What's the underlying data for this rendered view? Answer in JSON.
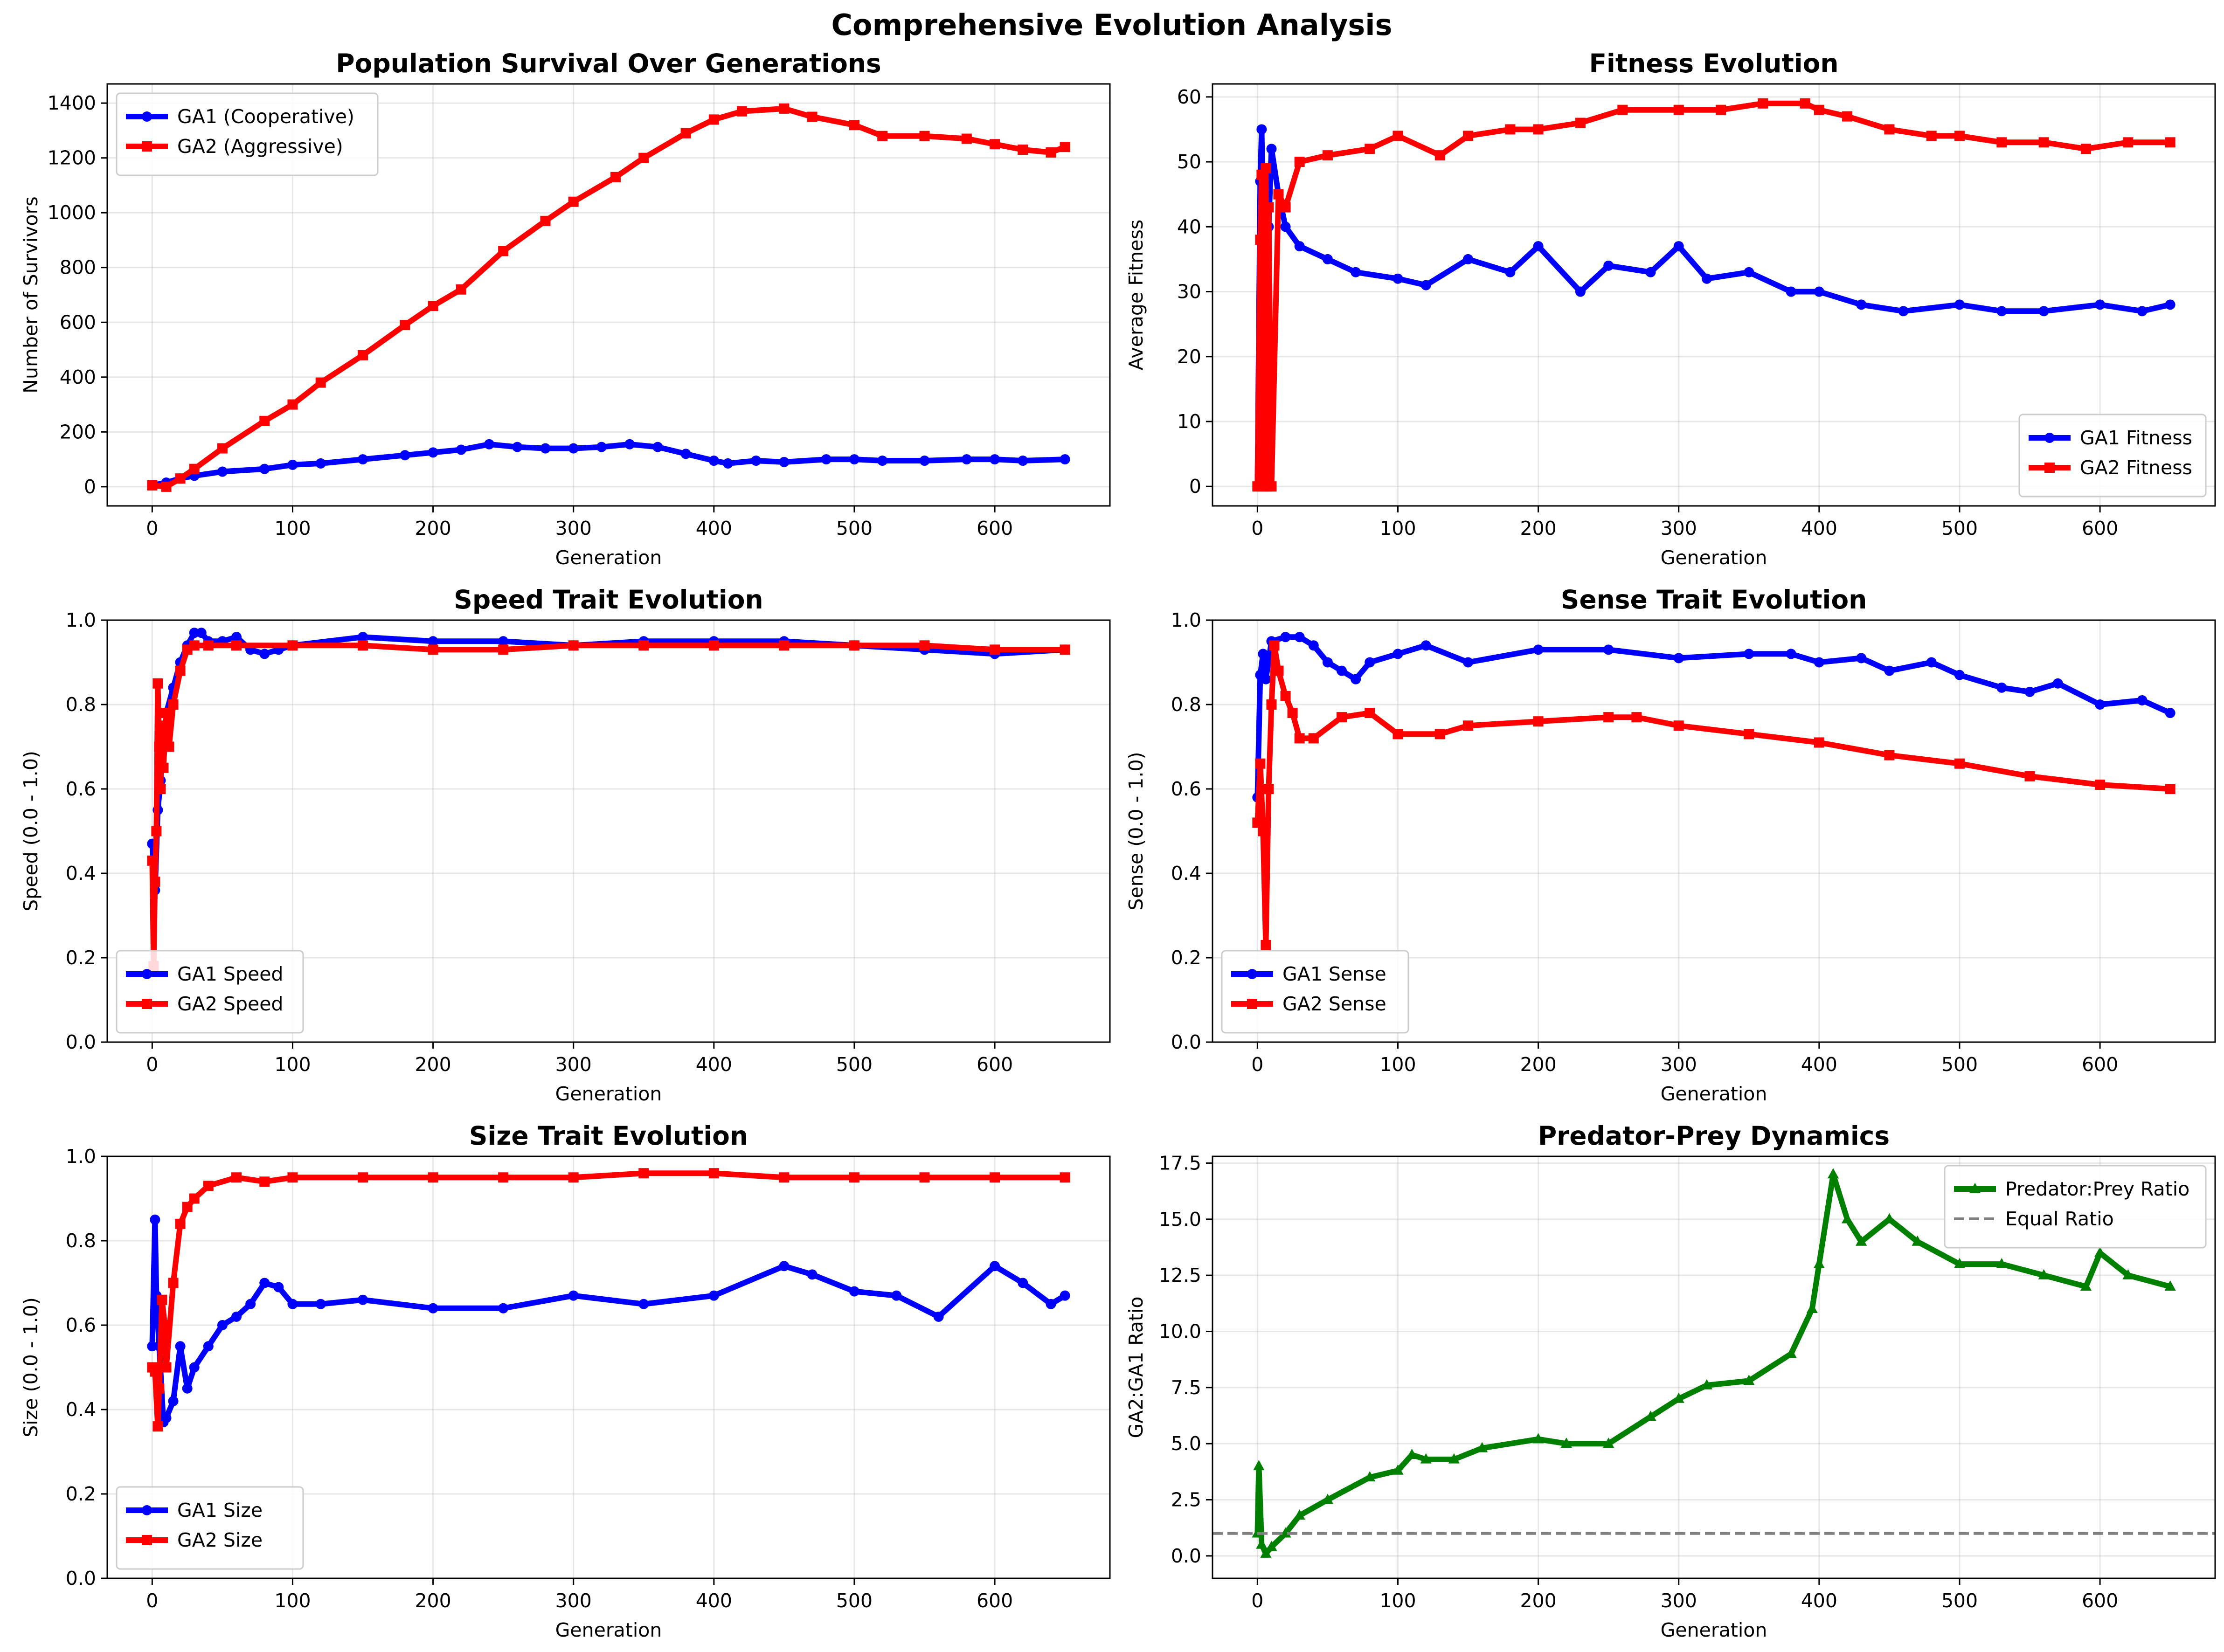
{
  "figure": {
    "suptitle": "Comprehensive Evolution Analysis"
  },
  "chart_data": [
    {
      "type": "line",
      "title": "Population Survival Over Generations",
      "xlabel": "Generation",
      "ylabel": "Number of Survivors",
      "xlim": [
        -32,
        682
      ],
      "ylim": [
        -70,
        1470
      ],
      "xticks": [
        0,
        100,
        200,
        300,
        400,
        500,
        600
      ],
      "yticks": [
        0,
        200,
        400,
        600,
        800,
        1000,
        1200,
        1400
      ],
      "grid": true,
      "legend": "upper left",
      "series": [
        {
          "name": "GA1 (Cooperative)",
          "color": "#0000ff",
          "marker": "circle",
          "x": [
            0,
            10,
            20,
            30,
            50,
            80,
            100,
            120,
            150,
            180,
            200,
            220,
            240,
            260,
            280,
            300,
            320,
            340,
            360,
            380,
            400,
            410,
            430,
            450,
            480,
            500,
            520,
            550,
            580,
            600,
            620,
            650
          ],
          "y": [
            5,
            15,
            30,
            40,
            55,
            65,
            80,
            85,
            100,
            115,
            125,
            135,
            155,
            145,
            140,
            140,
            145,
            155,
            145,
            120,
            95,
            85,
            95,
            90,
            100,
            100,
            95,
            95,
            100,
            100,
            95,
            100
          ]
        },
        {
          "name": "GA2 (Aggressive)",
          "color": "#ff0000",
          "marker": "square",
          "x": [
            0,
            10,
            20,
            30,
            50,
            80,
            100,
            120,
            150,
            180,
            200,
            220,
            250,
            280,
            300,
            330,
            350,
            380,
            400,
            420,
            450,
            470,
            500,
            520,
            550,
            580,
            600,
            620,
            640,
            650
          ],
          "y": [
            5,
            0,
            30,
            65,
            140,
            240,
            300,
            380,
            480,
            590,
            660,
            720,
            860,
            970,
            1040,
            1130,
            1200,
            1290,
            1340,
            1370,
            1380,
            1350,
            1320,
            1280,
            1280,
            1270,
            1250,
            1230,
            1220,
            1240
          ]
        }
      ]
    },
    {
      "type": "line",
      "title": "Fitness Evolution",
      "xlabel": "Generation",
      "ylabel": "Average Fitness",
      "xlim": [
        -32,
        682
      ],
      "ylim": [
        -3,
        62
      ],
      "xticks": [
        0,
        100,
        200,
        300,
        400,
        500,
        600
      ],
      "yticks": [
        0,
        10,
        20,
        30,
        40,
        50,
        60
      ],
      "grid": true,
      "legend": "lower right",
      "series": [
        {
          "name": "GA1 Fitness",
          "color": "#0000ff",
          "marker": "circle",
          "x": [
            0,
            2,
            3,
            4,
            6,
            8,
            10,
            15,
            20,
            30,
            50,
            70,
            100,
            120,
            150,
            180,
            200,
            230,
            250,
            280,
            300,
            320,
            350,
            380,
            400,
            430,
            460,
            500,
            530,
            560,
            600,
            630,
            650
          ],
          "y": [
            0,
            47,
            55,
            42,
            30,
            40,
            52,
            45,
            40,
            37,
            35,
            33,
            32,
            31,
            35,
            33,
            37,
            30,
            34,
            33,
            37,
            32,
            33,
            30,
            30,
            28,
            27,
            28,
            27,
            27,
            28,
            27,
            28
          ]
        },
        {
          "name": "GA2 Fitness",
          "color": "#ff0000",
          "marker": "square",
          "x": [
            0,
            2,
            3,
            4,
            5,
            6,
            7,
            8,
            10,
            15,
            20,
            30,
            50,
            80,
            100,
            130,
            150,
            180,
            200,
            230,
            260,
            300,
            330,
            360,
            390,
            400,
            420,
            450,
            480,
            500,
            530,
            560,
            590,
            620,
            650
          ],
          "y": [
            0,
            38,
            48,
            0,
            30,
            49,
            0,
            43,
            0,
            45,
            43,
            50,
            51,
            52,
            54,
            51,
            54,
            55,
            55,
            56,
            58,
            58,
            58,
            59,
            59,
            58,
            57,
            55,
            54,
            54,
            53,
            53,
            52,
            53,
            53
          ]
        }
      ]
    },
    {
      "type": "line",
      "title": "Speed Trait Evolution",
      "xlabel": "Generation",
      "ylabel": "Speed (0.0 - 1.0)",
      "xlim": [
        -32,
        682
      ],
      "ylim": [
        0.0,
        1.0
      ],
      "xticks": [
        0,
        100,
        200,
        300,
        400,
        500,
        600
      ],
      "yticks": [
        0.0,
        0.2,
        0.4,
        0.6,
        0.8,
        1.0
      ],
      "grid": true,
      "legend": "lower left",
      "series": [
        {
          "name": "GA1 Speed",
          "color": "#0000ff",
          "marker": "circle",
          "x": [
            0,
            2,
            4,
            6,
            8,
            10,
            15,
            20,
            25,
            30,
            35,
            40,
            50,
            60,
            70,
            80,
            90,
            100,
            150,
            200,
            250,
            300,
            350,
            400,
            450,
            500,
            550,
            600,
            650
          ],
          "y": [
            0.47,
            0.36,
            0.55,
            0.62,
            0.7,
            0.78,
            0.84,
            0.9,
            0.94,
            0.97,
            0.97,
            0.95,
            0.95,
            0.96,
            0.93,
            0.92,
            0.93,
            0.94,
            0.96,
            0.95,
            0.95,
            0.94,
            0.95,
            0.95,
            0.95,
            0.94,
            0.93,
            0.92,
            0.93
          ]
        },
        {
          "name": "GA2 Speed",
          "color": "#ff0000",
          "marker": "square",
          "x": [
            0,
            1,
            2,
            3,
            4,
            5,
            6,
            7,
            8,
            10,
            12,
            15,
            20,
            25,
            30,
            40,
            60,
            100,
            150,
            200,
            250,
            300,
            350,
            400,
            450,
            500,
            550,
            600,
            650
          ],
          "y": [
            0.43,
            0.18,
            0.38,
            0.5,
            0.85,
            0.7,
            0.6,
            0.75,
            0.65,
            0.78,
            0.7,
            0.8,
            0.88,
            0.93,
            0.94,
            0.94,
            0.94,
            0.94,
            0.94,
            0.93,
            0.93,
            0.94,
            0.94,
            0.94,
            0.94,
            0.94,
            0.94,
            0.93,
            0.93
          ]
        }
      ]
    },
    {
      "type": "line",
      "title": "Sense Trait Evolution",
      "xlabel": "Generation",
      "ylabel": "Sense (0.0 - 1.0)",
      "xlim": [
        -32,
        682
      ],
      "ylim": [
        0.0,
        1.0
      ],
      "xticks": [
        0,
        100,
        200,
        300,
        400,
        500,
        600
      ],
      "yticks": [
        0.0,
        0.2,
        0.4,
        0.6,
        0.8,
        1.0
      ],
      "grid": true,
      "legend": "lower left",
      "series": [
        {
          "name": "GA1 Sense",
          "color": "#0000ff",
          "marker": "circle",
          "x": [
            0,
            2,
            4,
            6,
            10,
            20,
            30,
            40,
            50,
            60,
            70,
            80,
            100,
            120,
            150,
            200,
            250,
            300,
            350,
            380,
            400,
            430,
            450,
            480,
            500,
            530,
            550,
            570,
            600,
            630,
            650
          ],
          "y": [
            0.58,
            0.87,
            0.92,
            0.86,
            0.95,
            0.96,
            0.96,
            0.94,
            0.9,
            0.88,
            0.86,
            0.9,
            0.92,
            0.94,
            0.9,
            0.93,
            0.93,
            0.91,
            0.92,
            0.92,
            0.9,
            0.91,
            0.88,
            0.9,
            0.87,
            0.84,
            0.83,
            0.85,
            0.8,
            0.81,
            0.78
          ]
        },
        {
          "name": "GA2 Sense",
          "color": "#ff0000",
          "marker": "square",
          "x": [
            0,
            2,
            4,
            6,
            8,
            10,
            12,
            15,
            20,
            25,
            30,
            40,
            60,
            80,
            100,
            130,
            150,
            200,
            250,
            270,
            300,
            350,
            400,
            450,
            500,
            550,
            600,
            650
          ],
          "y": [
            0.52,
            0.66,
            0.5,
            0.23,
            0.6,
            0.8,
            0.94,
            0.88,
            0.82,
            0.78,
            0.72,
            0.72,
            0.77,
            0.78,
            0.73,
            0.73,
            0.75,
            0.76,
            0.77,
            0.77,
            0.75,
            0.73,
            0.71,
            0.68,
            0.66,
            0.63,
            0.61,
            0.6
          ]
        }
      ]
    },
    {
      "type": "line",
      "title": "Size Trait Evolution",
      "xlabel": "Generation",
      "ylabel": "Size (0.0 - 1.0)",
      "xlim": [
        -32,
        682
      ],
      "ylim": [
        0.0,
        1.0
      ],
      "xticks": [
        0,
        100,
        200,
        300,
        400,
        500,
        600
      ],
      "yticks": [
        0.0,
        0.2,
        0.4,
        0.6,
        0.8,
        1.0
      ],
      "grid": true,
      "legend": "lower left",
      "series": [
        {
          "name": "GA1 Size",
          "color": "#0000ff",
          "marker": "circle",
          "x": [
            0,
            2,
            3,
            5,
            8,
            10,
            15,
            20,
            25,
            30,
            40,
            50,
            60,
            70,
            80,
            90,
            100,
            120,
            150,
            200,
            250,
            300,
            350,
            400,
            450,
            470,
            500,
            530,
            560,
            600,
            620,
            640,
            650
          ],
          "y": [
            0.55,
            0.85,
            0.67,
            0.55,
            0.37,
            0.38,
            0.42,
            0.55,
            0.45,
            0.5,
            0.55,
            0.6,
            0.62,
            0.65,
            0.7,
            0.69,
            0.65,
            0.65,
            0.66,
            0.64,
            0.64,
            0.67,
            0.65,
            0.67,
            0.74,
            0.72,
            0.68,
            0.67,
            0.62,
            0.74,
            0.7,
            0.65,
            0.67
          ]
        },
        {
          "name": "GA2 Size",
          "color": "#ff0000",
          "marker": "square",
          "x": [
            0,
            2,
            4,
            5,
            7,
            9,
            10,
            15,
            20,
            25,
            30,
            40,
            60,
            80,
            100,
            150,
            200,
            250,
            300,
            350,
            400,
            450,
            500,
            550,
            600,
            650
          ],
          "y": [
            0.5,
            0.49,
            0.36,
            0.45,
            0.66,
            0.6,
            0.5,
            0.7,
            0.84,
            0.88,
            0.9,
            0.93,
            0.95,
            0.94,
            0.95,
            0.95,
            0.95,
            0.95,
            0.95,
            0.96,
            0.96,
            0.95,
            0.95,
            0.95,
            0.95,
            0.95
          ]
        }
      ]
    },
    {
      "type": "line",
      "title": "Predator-Prey Dynamics",
      "xlabel": "Generation",
      "ylabel": "GA2:GA1 Ratio",
      "xlim": [
        -32,
        682
      ],
      "ylim": [
        -1,
        17.8
      ],
      "xticks": [
        0,
        100,
        200,
        300,
        400,
        500,
        600
      ],
      "yticks": [
        0.0,
        2.5,
        5.0,
        7.5,
        10.0,
        12.5,
        15.0,
        17.5
      ],
      "ytick_labels": [
        "0.0",
        "2.5",
        "5.0",
        "7.5",
        "10.0",
        "12.5",
        "15.0",
        "17.5"
      ],
      "grid": true,
      "legend": "upper right",
      "series": [
        {
          "name": "Predator:Prey Ratio",
          "color": "#008000",
          "marker": "triangle",
          "x": [
            0,
            1,
            3,
            6,
            10,
            20,
            30,
            50,
            80,
            100,
            110,
            120,
            140,
            160,
            200,
            220,
            250,
            280,
            300,
            320,
            350,
            380,
            395,
            400,
            410,
            420,
            430,
            450,
            470,
            500,
            530,
            560,
            590,
            600,
            620,
            650
          ],
          "y": [
            1.0,
            4.0,
            0.5,
            0.1,
            0.4,
            1.0,
            1.8,
            2.5,
            3.5,
            3.8,
            4.5,
            4.3,
            4.3,
            4.8,
            5.2,
            5.0,
            5.0,
            6.2,
            7.0,
            7.6,
            7.8,
            9.0,
            11.0,
            13.0,
            17.0,
            15.0,
            14.0,
            15.0,
            14.0,
            13.0,
            13.0,
            12.5,
            12.0,
            13.5,
            12.5,
            12.0
          ]
        },
        {
          "name": "Equal Ratio",
          "color": "#808080",
          "style": "dashed",
          "constant": 1.0
        }
      ]
    }
  ]
}
